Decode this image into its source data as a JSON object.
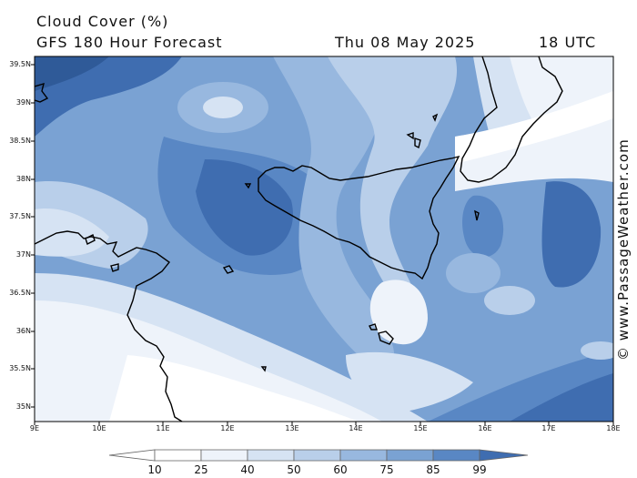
{
  "header": {
    "title": "Cloud Cover (%)",
    "model": "GFS 180 Hour Forecast",
    "date": "Thu 08 May 2025",
    "time": "18 UTC"
  },
  "credit": "© www.PassageWeather.com",
  "map": {
    "lat_labels": [
      "39.5N",
      "39N",
      "38.5N",
      "38N",
      "37.5N",
      "37N",
      "36.5N",
      "36N",
      "35.5N",
      "35N"
    ],
    "lon_labels": [
      "9E",
      "10E",
      "11E",
      "12E",
      "13E",
      "14E",
      "15E",
      "16E",
      "17E",
      "18E"
    ]
  },
  "colorbar": {
    "labels": [
      "10",
      "25",
      "40",
      "50",
      "60",
      "75",
      "85",
      "99"
    ],
    "colors": [
      "#ffffff",
      "#eef3fa",
      "#d6e3f3",
      "#b9cfea",
      "#98b8df",
      "#7aa2d3",
      "#5987c4",
      "#3f6db0",
      "#2f5a98"
    ]
  },
  "palette": {
    "coast": "#000000",
    "land_haze": "#ffffff"
  }
}
